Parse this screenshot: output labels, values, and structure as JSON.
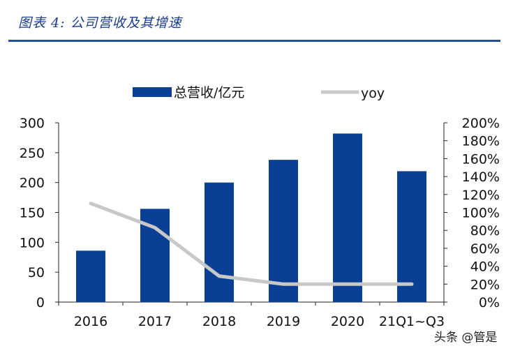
{
  "figure": {
    "title": "图表 4:  公司营收及其增速",
    "watermark": "头条 @管是"
  },
  "colors": {
    "bar": "#0a3f96",
    "line": "#c8c8c8",
    "title": "#1a3d8f",
    "rule": "#1f4e9a"
  },
  "chart_data": {
    "type": "bar",
    "title": "",
    "categories": [
      "2016",
      "2017",
      "2018",
      "2019",
      "2020",
      "21Q1~Q3"
    ],
    "series": [
      {
        "name": "总营收/亿元",
        "type": "bar",
        "axis": "left",
        "values": [
          86,
          156,
          200,
          238,
          282,
          219
        ]
      },
      {
        "name": "yoy",
        "type": "line",
        "axis": "right",
        "values": [
          1.1,
          0.83,
          0.29,
          0.2,
          0.2,
          0.2
        ]
      }
    ],
    "y_left": {
      "min": 0,
      "max": 300,
      "ticks": [
        "0",
        "50",
        "100",
        "150",
        "200",
        "250",
        "300"
      ]
    },
    "y_right": {
      "min": 0,
      "max": 2.0,
      "ticks": [
        "0%",
        "20%",
        "40%",
        "60%",
        "80%",
        "100%",
        "120%",
        "140%",
        "160%",
        "180%",
        "200%"
      ]
    },
    "grid": false,
    "legend": "top"
  }
}
